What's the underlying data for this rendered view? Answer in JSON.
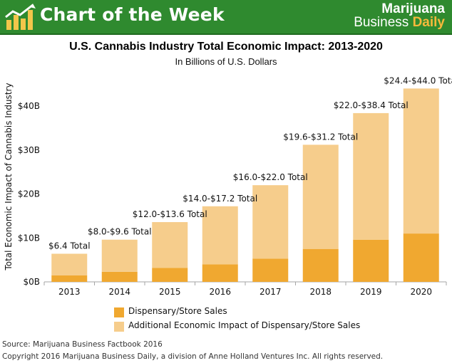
{
  "header": {
    "title": "Chart of the Week",
    "brand_line1": "Marijuana",
    "brand_business": "Business",
    "brand_daily": "Daily",
    "background": "#2f8a2f",
    "logo_icon": "bar-chart-logo-icon"
  },
  "chart_data": {
    "type": "bar",
    "stacked": true,
    "title": "U.S. Cannabis Industry Total Economic Impact: 2013-2020",
    "subtitle": "In Billions of U.S. Dollars",
    "xlabel": "",
    "ylabel": "Total Economic Impact of Cannabis Industry",
    "ylim": [
      0,
      46
    ],
    "yticks": [
      0,
      10,
      20,
      30,
      40
    ],
    "ytick_labels": [
      "$0B",
      "$10B",
      "$20B",
      "$30B",
      "$40B"
    ],
    "grid": false,
    "legend_position": "bottom",
    "categories": [
      "2013",
      "2014",
      "2015",
      "2016",
      "2017",
      "2018",
      "2019",
      "2020"
    ],
    "series": [
      {
        "name": "Dispensary/Store Sales",
        "color": "#f0a830",
        "values": [
          1.5,
          2.3,
          3.2,
          4.0,
          5.3,
          7.5,
          9.6,
          11.0
        ]
      },
      {
        "name": "Additional Economic Impact of Dispensary/Store Sales",
        "color": "#f6cd8c",
        "values": [
          4.9,
          7.3,
          10.4,
          13.2,
          16.7,
          23.7,
          28.8,
          33.0
        ]
      }
    ],
    "totals": [
      6.4,
      9.6,
      13.6,
      17.2,
      22.0,
      31.2,
      38.4,
      44.0
    ],
    "annotations": [
      "$6.4 Total",
      "$8.0-$9.6 Total",
      "$12.0-$13.6 Total",
      "$14.0-$17.2 Total",
      "$16.0-$22.0 Total",
      "$19.6-$31.2 Total",
      "$22.0-$38.4 Total",
      "$24.4-$44.0 Total"
    ]
  },
  "footer": {
    "source": "Source: Marijuana Business Factbook 2016",
    "copyright": "Copyright 2016 Marijuana Business Daily, a division of Anne Holland Ventures Inc. All rights reserved."
  }
}
